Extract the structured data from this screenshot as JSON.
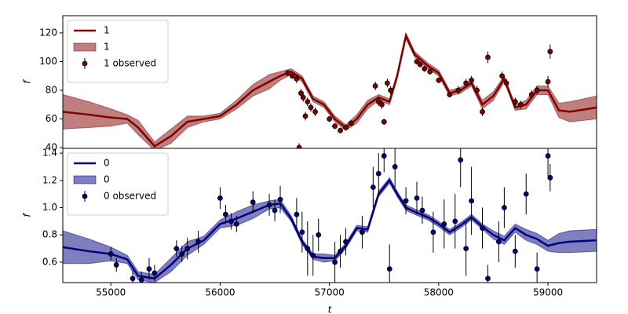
{
  "chart_data": [
    {
      "type": "line",
      "ylabel": "f",
      "xlim": [
        54560,
        59445
      ],
      "ylim": [
        39.5,
        132
      ],
      "yticks": [
        40,
        60,
        80,
        100,
        120
      ],
      "legend": "upper left",
      "x": [
        54560,
        54800,
        55000,
        55150,
        55250,
        55400,
        55550,
        55700,
        55850,
        56000,
        56150,
        56300,
        56450,
        56550,
        56650,
        56750,
        56850,
        56950,
        57050,
        57150,
        57250,
        57350,
        57450,
        57550,
        57620,
        57700,
        57780,
        57900,
        58000,
        58100,
        58200,
        58300,
        58400,
        58500,
        58600,
        58700,
        58800,
        58900,
        59000,
        59100,
        59200,
        59445
      ],
      "series": [
        {
          "name": "1",
          "kind": "line",
          "color": "#800000",
          "values": [
            65,
            63,
            61,
            60,
            54,
            41,
            48,
            58,
            60,
            62,
            70,
            80,
            86,
            90,
            93,
            88,
            74,
            70,
            60,
            54,
            60,
            70,
            75,
            72,
            90,
            118,
            105,
            97,
            92,
            78,
            80,
            85,
            70,
            76,
            88,
            68,
            70,
            80,
            80,
            66,
            65,
            68
          ]
        },
        {
          "name": "1",
          "kind": "band",
          "color": "#800000",
          "lower": [
            53,
            54,
            55,
            57,
            49,
            38,
            43,
            54,
            58,
            60,
            67,
            76,
            81,
            87,
            91,
            86,
            72,
            68,
            58,
            52,
            57,
            67,
            73,
            70,
            88,
            116,
            103,
            95,
            90,
            76,
            78,
            83,
            67,
            73,
            86,
            66,
            67,
            77,
            77,
            61,
            58,
            60
          ],
          "upper": [
            77,
            72,
            67,
            63,
            59,
            44,
            53,
            62,
            62,
            64,
            73,
            84,
            91,
            93,
            95,
            90,
            76,
            72,
            62,
            56,
            63,
            73,
            77,
            74,
            92,
            120,
            107,
            99,
            94,
            80,
            82,
            87,
            73,
            79,
            90,
            70,
            73,
            83,
            83,
            71,
            72,
            76
          ]
        },
        {
          "name": "1 observed",
          "kind": "errorbar",
          "color": "#800000",
          "x": [
            56620,
            56660,
            56700,
            56723,
            56740,
            56760,
            56780,
            56800,
            56830,
            56870,
            57000,
            57050,
            57100,
            57150,
            57200,
            57420,
            57450,
            57480,
            57500,
            57530,
            57560,
            57800,
            57830,
            57870,
            57920,
            58000,
            58100,
            58180,
            58250,
            58300,
            58350,
            58400,
            58450,
            58580,
            58620,
            58700,
            58750,
            58850,
            58900,
            59000,
            59020
          ],
          "values": [
            92,
            90,
            88,
            40,
            78,
            75,
            62,
            72,
            68,
            65,
            60,
            55,
            52,
            54,
            57,
            83,
            72,
            70,
            58,
            85,
            80,
            100,
            98,
            95,
            93,
            87,
            77,
            80,
            85,
            87,
            80,
            65,
            103,
            90,
            85,
            72,
            70,
            77,
            80,
            86,
            107
          ],
          "errors": [
            2,
            2,
            3,
            3,
            3,
            3,
            3,
            3,
            3,
            3,
            2,
            2,
            2,
            2,
            2,
            3,
            3,
            3,
            2,
            3,
            3,
            2,
            2,
            2,
            2,
            2,
            2,
            3,
            3,
            3,
            3,
            3,
            4,
            3,
            3,
            3,
            3,
            3,
            3,
            4,
            5
          ]
        }
      ]
    },
    {
      "type": "line",
      "xlabel": "t",
      "ylabel": "f",
      "xlim": [
        54560,
        59445
      ],
      "ylim": [
        0.45,
        1.435
      ],
      "xticks": [
        55000,
        56000,
        57000,
        58000,
        59000
      ],
      "yticks": [
        0.6,
        0.8,
        {
          "value": 1,
          "label": "1.0"
        },
        1.2,
        1.4
      ],
      "legend": "upper left",
      "x": [
        54560,
        54800,
        55000,
        55150,
        55250,
        55400,
        55550,
        55700,
        55850,
        56000,
        56150,
        56300,
        56450,
        56550,
        56650,
        56750,
        56850,
        56950,
        57050,
        57150,
        57250,
        57350,
        57450,
        57550,
        57620,
        57700,
        57780,
        57900,
        58000,
        58100,
        58200,
        58300,
        58400,
        58500,
        58600,
        58700,
        58800,
        58900,
        59000,
        59100,
        59200,
        59445
      ],
      "series": [
        {
          "name": "0",
          "kind": "line",
          "color": "#000080",
          "values": [
            0.71,
            0.68,
            0.66,
            0.62,
            0.5,
            0.48,
            0.58,
            0.7,
            0.76,
            0.88,
            0.92,
            0.97,
            1.02,
            1.03,
            0.92,
            0.75,
            0.64,
            0.63,
            0.63,
            0.72,
            0.85,
            0.84,
            1.1,
            1.2,
            1.1,
            1.0,
            0.97,
            0.93,
            0.88,
            0.82,
            0.87,
            0.93,
            0.86,
            0.8,
            0.76,
            0.85,
            0.8,
            0.77,
            0.72,
            0.74,
            0.75,
            0.76
          ]
        },
        {
          "name": "0",
          "kind": "band",
          "color": "#000080",
          "lower": [
            0.59,
            0.59,
            0.61,
            0.59,
            0.47,
            0.45,
            0.53,
            0.65,
            0.73,
            0.85,
            0.87,
            0.92,
            0.99,
            1.0,
            0.9,
            0.73,
            0.62,
            0.6,
            0.61,
            0.7,
            0.83,
            0.82,
            1.08,
            1.18,
            1.08,
            0.98,
            0.95,
            0.91,
            0.86,
            0.8,
            0.85,
            0.91,
            0.84,
            0.77,
            0.73,
            0.82,
            0.76,
            0.73,
            0.68,
            0.67,
            0.67,
            0.68
          ],
          "upper": [
            0.83,
            0.77,
            0.71,
            0.65,
            0.53,
            0.51,
            0.63,
            0.75,
            0.79,
            0.91,
            0.97,
            1.02,
            1.05,
            1.06,
            0.94,
            0.77,
            0.66,
            0.66,
            0.65,
            0.74,
            0.87,
            0.86,
            1.12,
            1.22,
            1.12,
            1.02,
            0.99,
            0.95,
            0.9,
            0.84,
            0.89,
            0.95,
            0.88,
            0.83,
            0.79,
            0.88,
            0.84,
            0.81,
            0.76,
            0.81,
            0.83,
            0.84
          ]
        },
        {
          "name": "0 observed",
          "kind": "errorbar",
          "color": "#000080",
          "x": [
            55000,
            55050,
            55200,
            55280,
            55350,
            55400,
            55600,
            55650,
            55700,
            55800,
            56000,
            56050,
            56100,
            56150,
            56300,
            56450,
            56500,
            56550,
            56700,
            56750,
            56800,
            56850,
            56900,
            57050,
            57100,
            57150,
            57300,
            57400,
            57450,
            57500,
            57550,
            57600,
            57700,
            57800,
            57850,
            57950,
            58050,
            58150,
            58200,
            58250,
            58300,
            58400,
            58450,
            58550,
            58600,
            58700,
            58800,
            58900,
            59000,
            59020
          ],
          "values": [
            0.66,
            0.58,
            0.48,
            0.47,
            0.55,
            0.52,
            0.7,
            0.66,
            0.7,
            0.75,
            1.07,
            0.95,
            0.9,
            0.88,
            1.04,
            1.02,
            0.98,
            1.06,
            0.95,
            0.82,
            0.7,
            0.65,
            0.8,
            0.6,
            0.68,
            0.75,
            0.82,
            1.15,
            1.25,
            1.38,
            0.55,
            1.3,
            1.05,
            1.07,
            0.98,
            0.82,
            0.88,
            0.9,
            1.35,
            0.7,
            1.05,
            0.85,
            0.48,
            0.75,
            1.0,
            0.68,
            1.1,
            0.55,
            1.38,
            1.22
          ],
          "errors": [
            0.05,
            0.05,
            0.06,
            0.06,
            0.08,
            0.06,
            0.06,
            0.06,
            0.08,
            0.08,
            0.08,
            0.07,
            0.06,
            0.06,
            0.08,
            0.08,
            0.08,
            0.1,
            0.12,
            0.15,
            0.2,
            0.15,
            0.12,
            0.15,
            0.12,
            0.1,
            0.12,
            0.15,
            0.15,
            0.12,
            0.18,
            0.15,
            0.1,
            0.12,
            0.1,
            0.15,
            0.18,
            0.2,
            0.2,
            0.2,
            0.25,
            0.15,
            0.1,
            0.15,
            0.15,
            0.12,
            0.15,
            0.12,
            0.15,
            0.1
          ]
        }
      ]
    }
  ]
}
